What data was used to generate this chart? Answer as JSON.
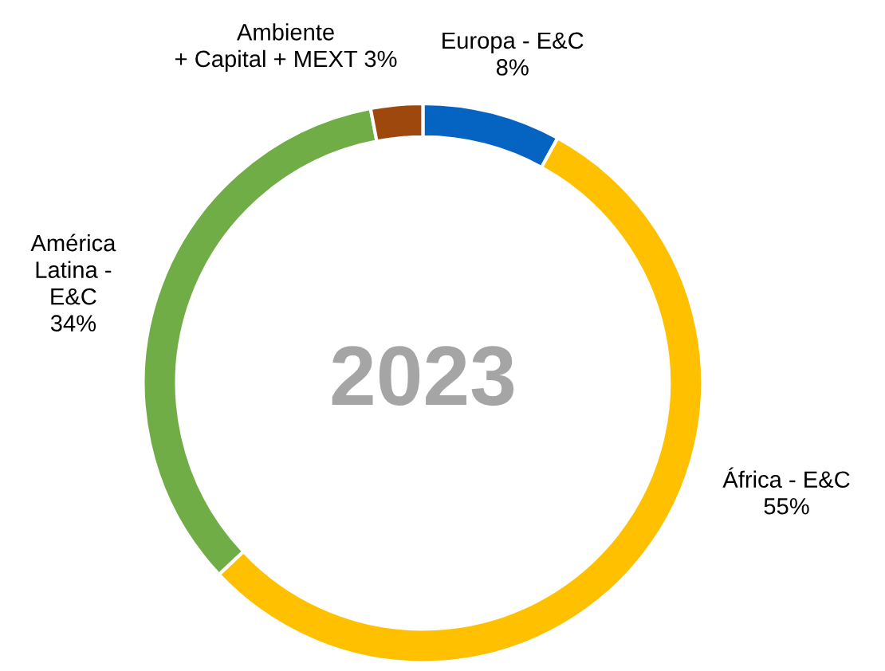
{
  "chart_data": {
    "type": "donut",
    "categories": [
      "Europa - E&C",
      "África - E&C",
      "América\nLatina -\nE&C",
      "Ambiente\n+ Capital + MEXT"
    ],
    "values": [
      8,
      55,
      34,
      3
    ],
    "colors": [
      "#0563c1",
      "#ffc000",
      "#70ad47",
      "#9e480e"
    ],
    "value_labels": [
      "8%",
      "55%",
      "34%",
      "3%"
    ],
    "annotations": [
      "2023"
    ],
    "legend": false
  }
}
